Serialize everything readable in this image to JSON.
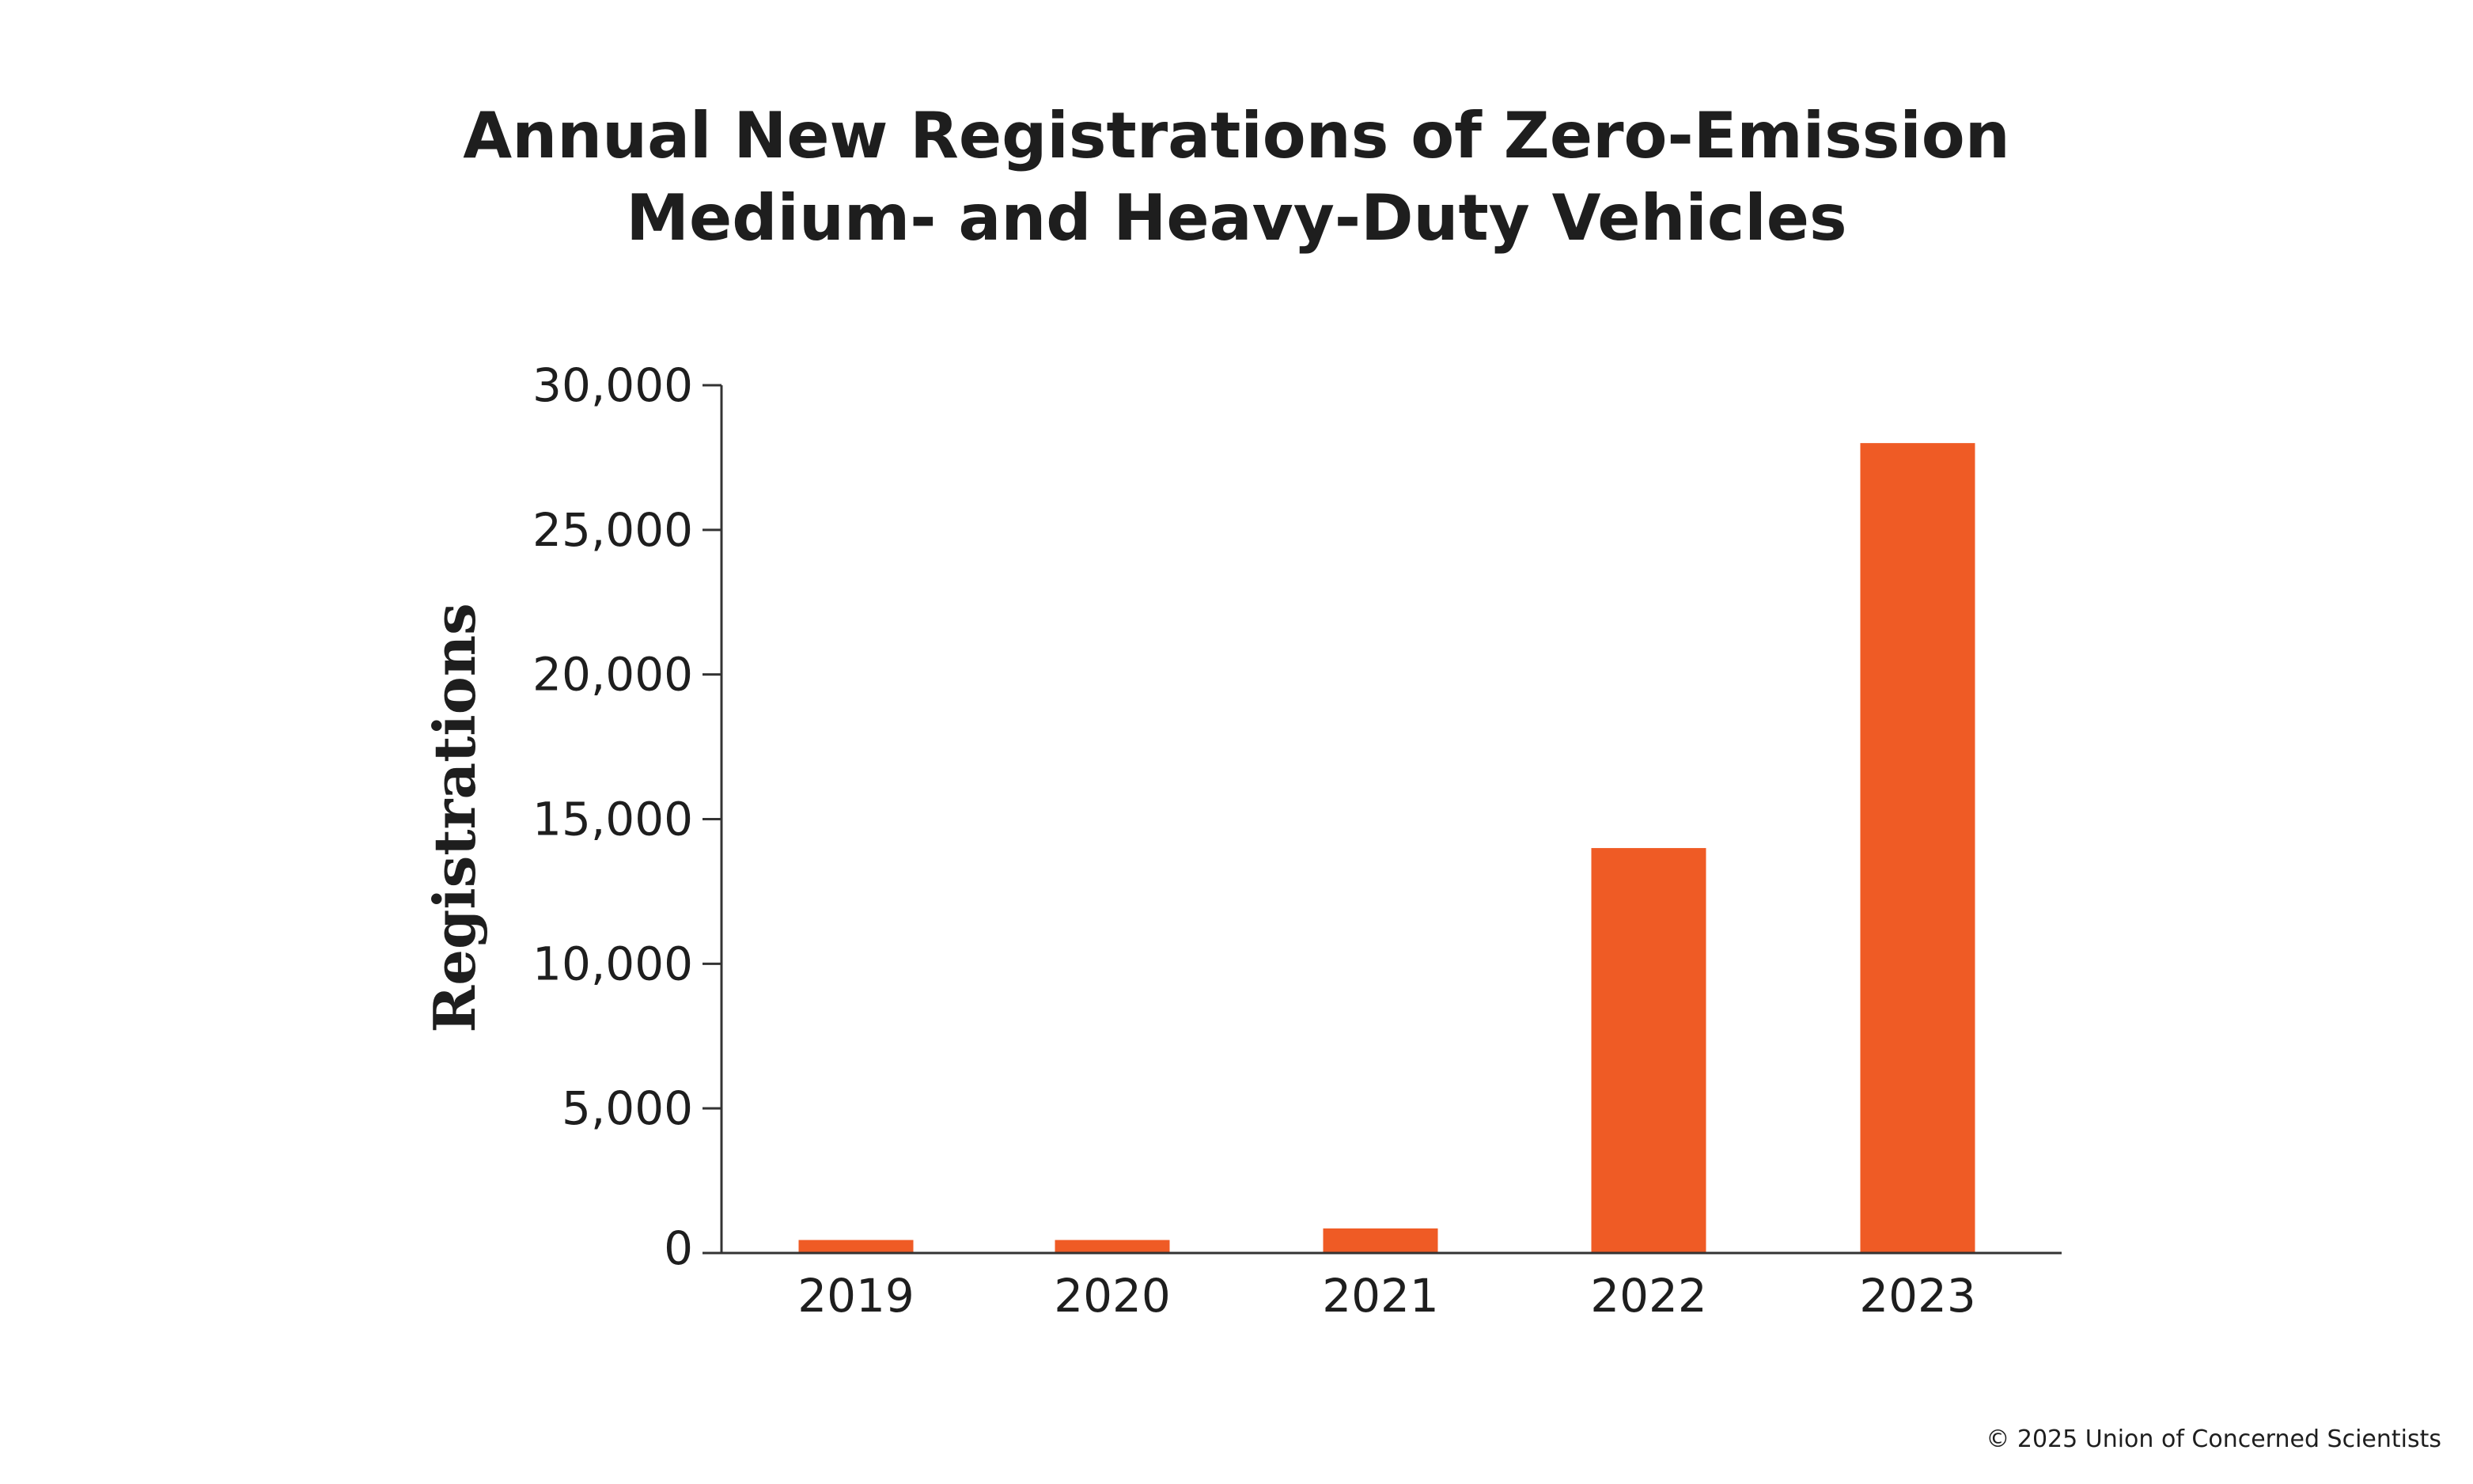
{
  "chart_data": {
    "type": "bar",
    "title_lines": [
      "Annual New Registrations of Zero-Emission",
      "Medium- and Heavy-Duty Vehicles"
    ],
    "xlabel": "",
    "ylabel": "Registrations",
    "categories": [
      "2019",
      "2020",
      "2021",
      "2022",
      "2023"
    ],
    "values": [
      450,
      450,
      850,
      14000,
      28000
    ],
    "ylim": [
      0,
      30000
    ],
    "yticks": [
      0,
      5000,
      10000,
      15000,
      20000,
      25000,
      30000
    ],
    "ytick_labels": [
      "0",
      "5,000",
      "10,000",
      "15,000",
      "20,000",
      "25,000",
      "30,000"
    ],
    "bar_color": "#EF5B25",
    "axis_color": "#333333",
    "grid": false,
    "legend": "none"
  },
  "footer": {
    "copyright": "© 2025 Union of Concerned Scientists"
  }
}
